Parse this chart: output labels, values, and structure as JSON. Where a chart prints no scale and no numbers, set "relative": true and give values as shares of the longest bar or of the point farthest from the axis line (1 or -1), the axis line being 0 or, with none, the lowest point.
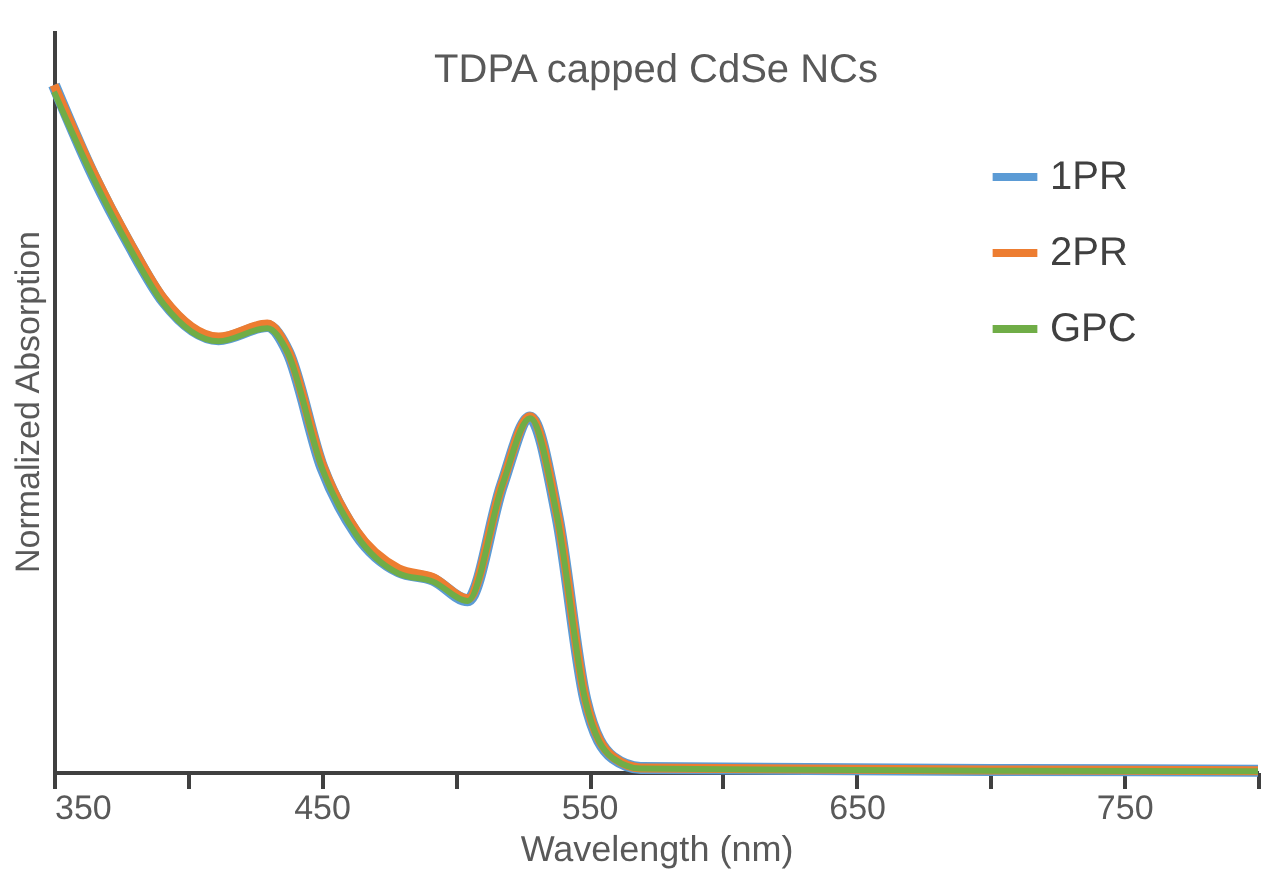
{
  "chart_data": {
    "type": "line",
    "title": "TDPA capped CdSe NCs",
    "xlabel": "Wavelength (nm)",
    "ylabel": "Normalized Absorption",
    "relative": true,
    "x": [
      350,
      365,
      378,
      391,
      411.5,
      429.7,
      437.4,
      450.3,
      463,
      478.8,
      491.7,
      504.6,
      517.6,
      527.9,
      538.2,
      548.6,
      558.9,
      569.3,
      600,
      700,
      800
    ],
    "series": [
      {
        "name": "1PR",
        "color": "#5b9bd5",
        "values": [
          1.0,
          0.866,
          0.769,
          0.685,
          0.63,
          0.649,
          0.612,
          0.443,
          0.347,
          0.292,
          0.28,
          0.25,
          0.419,
          0.516,
          0.371,
          0.105,
          0.021,
          0.006,
          0.005,
          0.003,
          0.002
        ]
      },
      {
        "name": "2PR",
        "color": "#ed7d31",
        "values": [
          1.0,
          0.87,
          0.773,
          0.689,
          0.633,
          0.652,
          0.614,
          0.447,
          0.351,
          0.296,
          0.283,
          0.252,
          0.42,
          0.517,
          0.373,
          0.107,
          0.022,
          0.006,
          0.005,
          0.003,
          0.002
        ]
      },
      {
        "name": "GPC",
        "color": "#70ad47",
        "values": [
          0.99,
          0.862,
          0.765,
          0.681,
          0.627,
          0.646,
          0.61,
          0.441,
          0.345,
          0.289,
          0.277,
          0.249,
          0.418,
          0.515,
          0.369,
          0.104,
          0.02,
          0.005,
          0.004,
          0.002,
          0.001
        ]
      }
    ],
    "xlim": [
      350,
      800
    ],
    "xticks": [
      350,
      {
        "value": 400,
        "label": null
      },
      450,
      {
        "value": 500,
        "label": null
      },
      550,
      {
        "value": 600,
        "label": null
      },
      650,
      {
        "value": 700,
        "label": null
      },
      750,
      {
        "value": 800,
        "label": null
      }
    ],
    "grid": false,
    "legend": "top right",
    "marker": "none",
    "line_style": "solid"
  }
}
